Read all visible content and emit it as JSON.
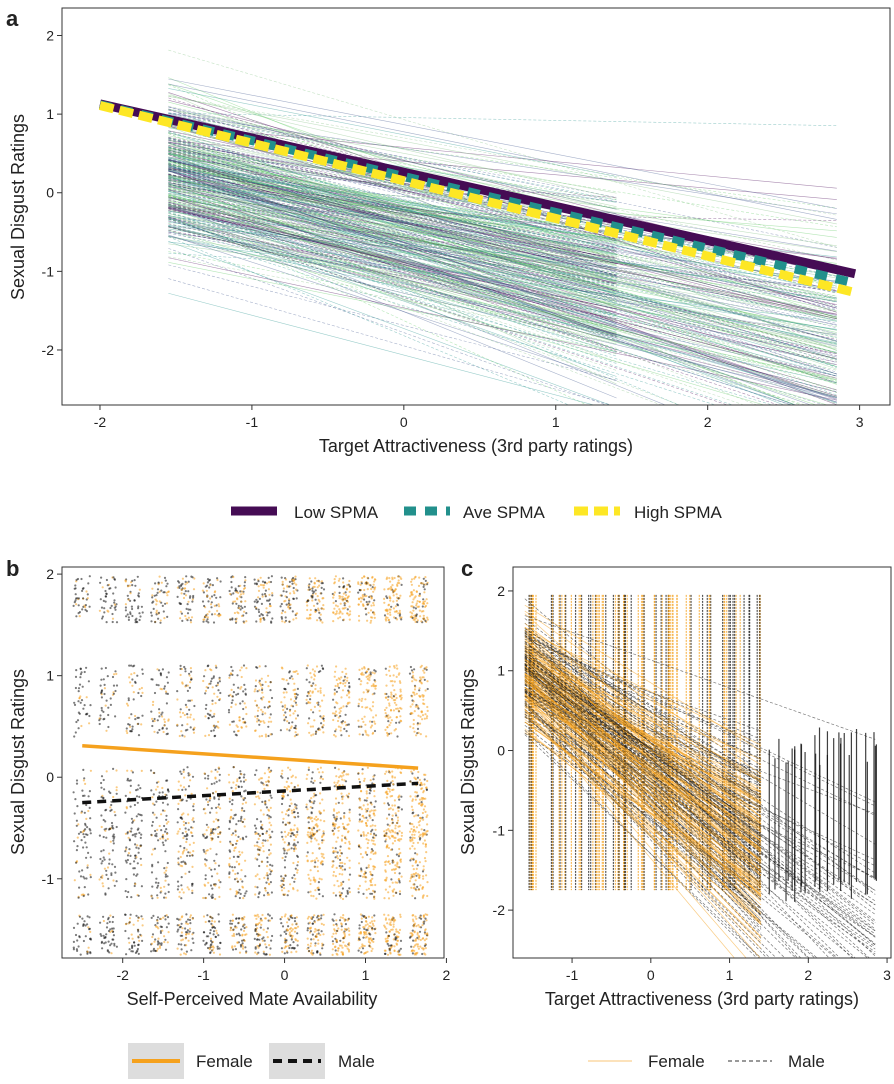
{
  "colors": {
    "low": "#450c54",
    "ave": "#22908c",
    "high": "#fde725",
    "female": "#f5a11d",
    "male": "#111111",
    "frame": "#333333",
    "background_lines": [
      "#3b528b",
      "#21918c",
      "#5ec962",
      "#440154",
      "#7fbf7f"
    ]
  },
  "chart_data": [
    {
      "panel": "a",
      "type": "line",
      "xlabel": "Target Attractiveness (3rd party ratings)",
      "ylabel": "Sexual Disgust Ratings",
      "xlim": [
        -2.25,
        3.2
      ],
      "ylim": [
        -2.7,
        2.35
      ],
      "xticks": [
        -2,
        -1,
        0,
        1,
        2,
        3
      ],
      "yticks": [
        -2,
        -1,
        0,
        1,
        2
      ],
      "grid": false,
      "legend_position": "bottom",
      "background": "many thin individual-participant regression lines (solid and dashed) spanning x from -1.55 to 1.4 or 2.85",
      "series": [
        {
          "name": "Low SPMA",
          "style": "solid",
          "x": [
            -2,
            2.97
          ],
          "y": [
            1.13,
            -1.03
          ]
        },
        {
          "name": "Ave SPMA",
          "style": "dashed",
          "x": [
            -2,
            2.97
          ],
          "y": [
            1.12,
            -1.15
          ]
        },
        {
          "name": "High SPMA",
          "style": "dashed",
          "x": [
            -2,
            2.97
          ],
          "y": [
            1.11,
            -1.27
          ]
        }
      ]
    },
    {
      "panel": "b",
      "type": "scatter",
      "xlabel": "Self-Perceived Mate Availability",
      "ylabel": "Sexual Disgust Ratings",
      "xlim": [
        -2.75,
        1.97
      ],
      "ylim": [
        -1.78,
        2.07
      ],
      "xticks": [
        -2,
        -1,
        0,
        1,
        2
      ],
      "yticks": [
        -1,
        0,
        1,
        2
      ],
      "grid": false,
      "legend_position": "bottom",
      "background": "jittered raw data points for female and male participants",
      "series": [
        {
          "name": "Female",
          "style": "solid",
          "x": [
            -2.5,
            1.65
          ],
          "y": [
            0.31,
            0.09
          ]
        },
        {
          "name": "Male",
          "style": "dashed",
          "x": [
            -2.5,
            1.65
          ],
          "y": [
            -0.25,
            -0.06
          ]
        }
      ]
    },
    {
      "panel": "c",
      "type": "line",
      "xlabel": "Target Attractiveness (3rd party ratings)",
      "ylabel": "Sexual Disgust Ratings",
      "xlim": [
        -1.75,
        3.05
      ],
      "ylim": [
        -2.6,
        2.3
      ],
      "xticks": [
        -1,
        0,
        1,
        2,
        3
      ],
      "yticks": [
        -2,
        -1,
        0,
        1,
        2
      ],
      "grid": false,
      "legend_position": "bottom",
      "background": "raw data points and individual regression lines for female and male participants",
      "series": [
        {
          "name": "Female",
          "style": "solid"
        },
        {
          "name": "Male",
          "style": "dashed"
        }
      ]
    }
  ],
  "panels": {
    "a": {
      "letter": "a"
    },
    "b": {
      "letter": "b"
    },
    "c": {
      "letter": "c"
    }
  },
  "legends": {
    "top": [
      "Low SPMA",
      "Ave SPMA",
      "High SPMA"
    ],
    "b": [
      "Female",
      "Male"
    ],
    "c": [
      "Female",
      "Male"
    ]
  }
}
